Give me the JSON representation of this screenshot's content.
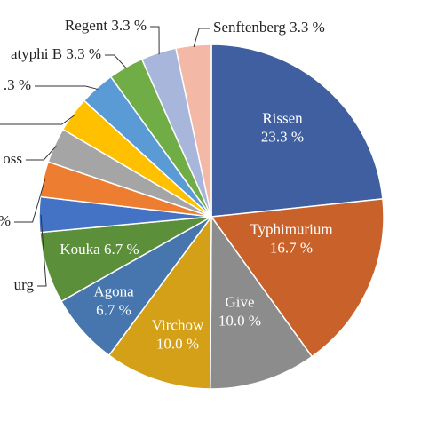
{
  "chart_data": {
    "type": "pie",
    "labels": [
      [
        "Rissen",
        "23.3 %"
      ],
      [
        "Typhimurium",
        "16.7 %"
      ],
      [
        "Give",
        "10.0 %"
      ],
      [
        "Virchow",
        "10.0 %"
      ],
      [
        "Agona",
        "6.7 %"
      ],
      [
        "Kouka 6.7 %"
      ],
      [
        "urg"
      ],
      [
        "%"
      ],
      [
        "oss"
      ],
      null,
      [
        ".3 %"
      ],
      [
        "atyphi B 3.3 %"
      ],
      [
        "Regent 3.3 %"
      ],
      [
        "Senftenberg 3.3 %"
      ]
    ],
    "values": [
      23.3,
      16.7,
      10.0,
      10.0,
      6.7,
      6.7,
      3.3,
      3.3,
      3.3,
      3.3,
      3.3,
      3.3,
      3.3,
      3.3
    ],
    "colors": [
      "#3f5fa0",
      "#c8622a",
      "#8c8c8c",
      "#d4a017",
      "#4676ad",
      "#5b8f3a",
      "#4472c4",
      "#ed7d31",
      "#a5a5a5",
      "#ffc000",
      "#5b9bd5",
      "#70ad47",
      "#a9b6dc",
      "#f4b9a6"
    ]
  }
}
